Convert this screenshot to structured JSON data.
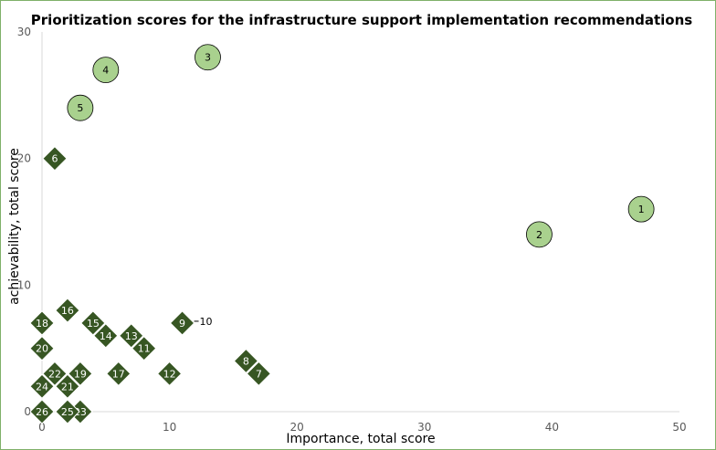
{
  "chart_data": {
    "type": "scatter",
    "title": "Prioritization scores for the infrastructure support implementation recommendations",
    "xlabel": "Importance, total score",
    "ylabel": "achievability, total score",
    "xlim": [
      0,
      50
    ],
    "ylim": [
      0,
      30
    ],
    "x_ticks": [
      "0",
      "10",
      "20",
      "30",
      "40",
      "50"
    ],
    "y_ticks": [
      "0",
      "10",
      "20",
      "30"
    ],
    "grid": false,
    "legend": "none",
    "colors": {
      "circle_fill": "#a9d18e",
      "diamond_fill": "#375623",
      "marker_stroke": "#ffffff",
      "axis": "#d9d9d9",
      "frame": "#7fb069"
    },
    "series": [
      {
        "marker": "circle",
        "points": [
          {
            "label": "1",
            "x": 47,
            "y": 16
          },
          {
            "label": "2",
            "x": 39,
            "y": 14
          },
          {
            "label": "3",
            "x": 13,
            "y": 28
          },
          {
            "label": "4",
            "x": 5,
            "y": 27
          },
          {
            "label": "5",
            "x": 3,
            "y": 24
          }
        ]
      },
      {
        "marker": "diamond",
        "points": [
          {
            "label": "6",
            "x": 1,
            "y": 20
          },
          {
            "label": "7",
            "x": 17,
            "y": 3
          },
          {
            "label": "8",
            "x": 16,
            "y": 4
          },
          {
            "label": "9",
            "x": 11,
            "y": 7
          },
          {
            "label": "10",
            "x": 11,
            "y": 7,
            "callout": true
          },
          {
            "label": "11",
            "x": 8,
            "y": 5
          },
          {
            "label": "12",
            "x": 10,
            "y": 3
          },
          {
            "label": "13",
            "x": 7,
            "y": 6
          },
          {
            "label": "14",
            "x": 5,
            "y": 6
          },
          {
            "label": "15",
            "x": 4,
            "y": 7
          },
          {
            "label": "16",
            "x": 2,
            "y": 8
          },
          {
            "label": "17",
            "x": 6,
            "y": 3
          },
          {
            "label": "18",
            "x": 0,
            "y": 7
          },
          {
            "label": "19",
            "x": 3,
            "y": 3
          },
          {
            "label": "20",
            "x": 0,
            "y": 5
          },
          {
            "label": "21",
            "x": 2,
            "y": 2
          },
          {
            "label": "22",
            "x": 1,
            "y": 3
          },
          {
            "label": "23",
            "x": 3,
            "y": 0
          },
          {
            "label": "24",
            "x": 0,
            "y": 2
          },
          {
            "label": "25",
            "x": 2,
            "y": 0
          },
          {
            "label": "26",
            "x": 0,
            "y": 0
          }
        ]
      }
    ]
  }
}
